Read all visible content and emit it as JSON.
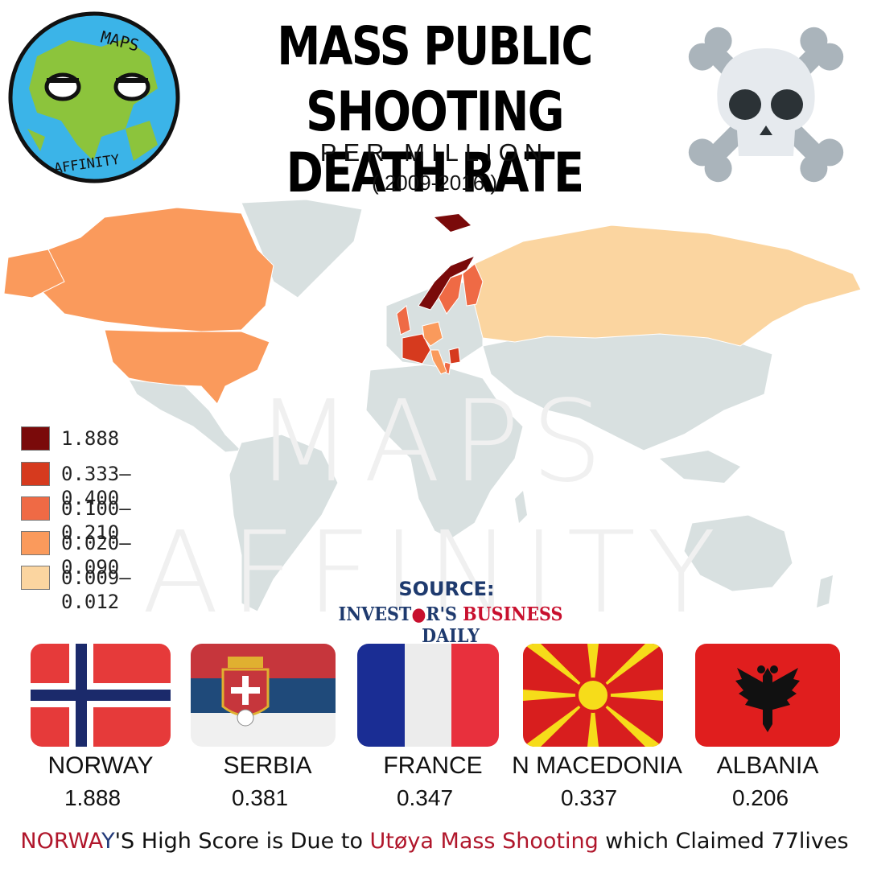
{
  "title_line1": "MASS PUBLIC",
  "title_line2": "SHOOTING DEATH RATE",
  "subtitle": "PER MILLION",
  "years": "( 2009-2016 )",
  "logo": {
    "top_text": "MAPS",
    "bottom_text": "AFFINITY"
  },
  "watermark": "MAPS AFFINITY",
  "legend": [
    {
      "label": "1.888",
      "color": "#7a0a0a"
    },
    {
      "label": "0.333–0.400",
      "color": "#d63a1e"
    },
    {
      "label": "0.100–0.210",
      "color": "#ef6a45"
    },
    {
      "label": "0.020–0.090",
      "color": "#fa9a5c"
    },
    {
      "label": "0.009–0.012",
      "color": "#fbd5a0"
    }
  ],
  "no_data_color": "#d8e0e0",
  "source": {
    "label": "SOURCE:",
    "name_part1": "INVEST",
    "name_part1b": "R'S ",
    "name_part2": "BUSINESS",
    "name_part3": " DAILY"
  },
  "countries": [
    {
      "name": "NORWAY",
      "value": "1.888",
      "flag": "norway-flag"
    },
    {
      "name": "SERBIA",
      "value": "0.381",
      "flag": "serbia-flag"
    },
    {
      "name": "FRANCE",
      "value": "0.347",
      "flag": "france-flag"
    },
    {
      "name": "N MACEDONIA",
      "value": "0.337",
      "flag": "macedonia-flag"
    },
    {
      "name": "ALBANIA",
      "value": "0.206",
      "flag": "albania-flag"
    }
  ],
  "footer": {
    "nor1": "NORWA",
    "nor2": "Y",
    "rest1": "'S High Score is Due to ",
    "event": "Utøya Mass Shooting",
    "rest2": " which Claimed 77lives"
  }
}
